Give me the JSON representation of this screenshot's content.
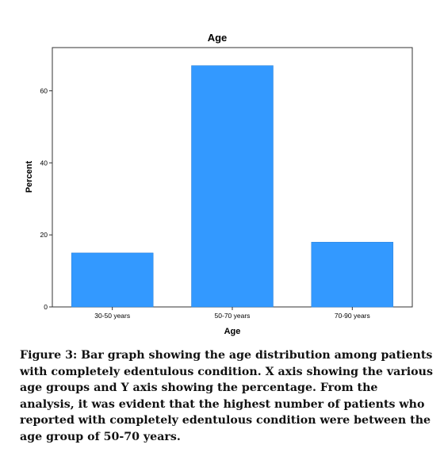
{
  "chart_data": {
    "type": "bar",
    "title": "Age",
    "xlabel": "Age",
    "ylabel": "Percent",
    "categories": [
      "30-50 years",
      "50-70 years",
      "70-90 years"
    ],
    "values": [
      15,
      67,
      18
    ],
    "ylim": [
      0,
      72
    ],
    "yticks": [
      0,
      20,
      40,
      60
    ],
    "bar_color": "#3399ff",
    "grid": false,
    "legend": "none"
  },
  "caption": "Figure 3: Bar graph showing the age distribution among patients with completely edentulous condition. X axis showing the various age groups and Y axis showing the percentage. From the analysis, it was evident that the highest number of patients who reported with completely edentulous condition were between the age group of 50-70 years."
}
